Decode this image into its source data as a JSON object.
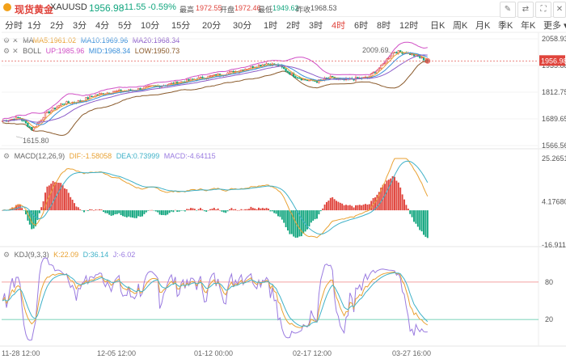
{
  "header": {
    "title": "现货黄金",
    "symbol": "XAUUSD",
    "price": "1956.98",
    "change": "-11.55",
    "change_pct": "-0.59%",
    "high_label": "最高",
    "high": "1972.55",
    "open_label": "开盘",
    "open": "1972.46",
    "low_label": "最低",
    "low": "1949.62",
    "prev_label": "昨收",
    "prev": "1968.53",
    "toolbar_icons": [
      "draw-icon",
      "compare-icon",
      "fullscreen-icon",
      "close-icon"
    ]
  },
  "intervals": [
    "分时",
    "1分",
    "2分",
    "3分",
    "4分",
    "5分",
    "10分",
    "15分",
    "20分",
    "30分",
    "1时",
    "2时",
    "3时",
    "4时",
    "6时",
    "8时",
    "12时",
    "日K",
    "周K",
    "月K",
    "季K",
    "年K",
    "更多"
  ],
  "active_interval": "4时",
  "indicators": {
    "ma": {
      "name": "MA",
      "ma5": "MA5:1961.02",
      "ma10": "MA10:1969.96",
      "ma20": "MA20:1968.34"
    },
    "boll": {
      "name": "BOLL",
      "up": "UP:1985.96",
      "mid": "MID:1968.34",
      "low": "LOW:1950.73"
    },
    "macd": {
      "name": "MACD(12,26,9)",
      "dif": "DIF:-1.58058",
      "dea": "DEA:0.73999",
      "macd": "MACD:-4.64115"
    },
    "kdj": {
      "name": "KDJ(9,3,3)",
      "k": "K:22.09",
      "d": "D:36.14",
      "j": "J:-6.02"
    }
  },
  "colors": {
    "up": "#e0443c",
    "down": "#13a67f",
    "ma5": "#e9a234",
    "ma10": "#3a8fd9",
    "ma20": "#8b5cc9",
    "boll_up": "#d04fc5",
    "boll_low": "#8a5a2b",
    "line_k": "#e9a234",
    "line_d": "#3fb1c8",
    "line_j": "#9a7be0"
  },
  "chart_data": [
    {
      "type": "candlestick",
      "price_axis_ticks": [
        "2058.93",
        "1935.88",
        "1812.75",
        "1689.65",
        "1566.56"
      ],
      "ylim": [
        1566.56,
        2058.93
      ],
      "last_price": "1956.98",
      "annotations": [
        {
          "text": "2009.69",
          "value": 2009.69
        },
        {
          "text": "1615.80",
          "value": 1615.8
        }
      ],
      "trend": [
        [
          0,
          1680
        ],
        [
          0.04,
          1695
        ],
        [
          0.07,
          1640
        ],
        [
          0.1,
          1710
        ],
        [
          0.14,
          1760
        ],
        [
          0.18,
          1770
        ],
        [
          0.22,
          1800
        ],
        [
          0.26,
          1815
        ],
        [
          0.3,
          1820
        ],
        [
          0.34,
          1835
        ],
        [
          0.38,
          1845
        ],
        [
          0.42,
          1860
        ],
        [
          0.46,
          1875
        ],
        [
          0.5,
          1890
        ],
        [
          0.54,
          1905
        ],
        [
          0.58,
          1925
        ],
        [
          0.62,
          1945
        ],
        [
          0.65,
          1935
        ],
        [
          0.68,
          1895
        ],
        [
          0.71,
          1870
        ],
        [
          0.74,
          1862
        ],
        [
          0.77,
          1880
        ],
        [
          0.8,
          1868
        ],
        [
          0.83,
          1875
        ],
        [
          0.86,
          1880
        ],
        [
          0.89,
          1930
        ],
        [
          0.92,
          2000
        ],
        [
          0.95,
          1995
        ],
        [
          0.98,
          1975
        ],
        [
          1.0,
          1957
        ]
      ]
    },
    {
      "type": "bar",
      "name": "MACD",
      "axis_ticks": [
        "25.26514",
        "4.17680",
        "-16.91154"
      ],
      "ylim": [
        -16.91154,
        25.26514
      ]
    },
    {
      "type": "line",
      "name": "KDJ",
      "axis_ticks": [
        "80",
        "20"
      ],
      "ylim": [
        -20,
        120
      ]
    }
  ],
  "time_axis": [
    "11-28 12:00",
    "12-05 12:00",
    "01-12 00:00",
    "02-17 12:00",
    "03-27 16:00"
  ]
}
